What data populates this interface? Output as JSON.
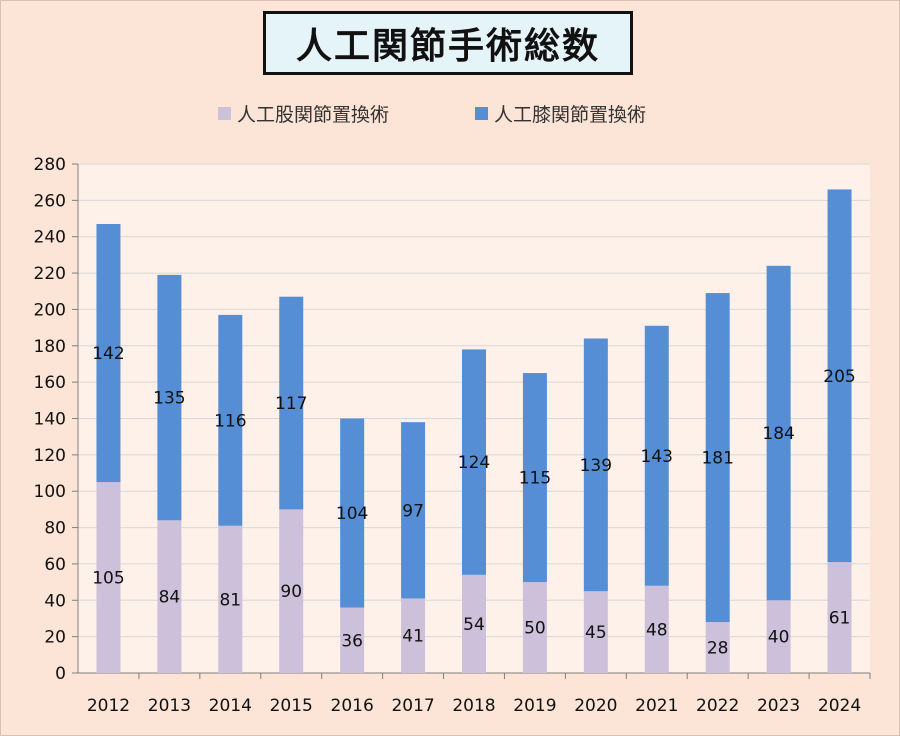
{
  "chart_data": {
    "type": "bar",
    "stacked": true,
    "title": "人工関節手術総数",
    "xlabel": "",
    "ylabel": "",
    "categories": [
      "2012",
      "2013",
      "2014",
      "2015",
      "2016",
      "2017",
      "2018",
      "2019",
      "2020",
      "2021",
      "2022",
      "2023",
      "2024"
    ],
    "series": [
      {
        "name": "人工股関節置換術",
        "color": "#ccc0da",
        "values": [
          105,
          84,
          81,
          90,
          36,
          41,
          54,
          50,
          45,
          48,
          28,
          40,
          61
        ]
      },
      {
        "name": "人工膝関節置換術",
        "color": "#558ed5",
        "values": [
          142,
          135,
          116,
          117,
          104,
          97,
          124,
          115,
          139,
          143,
          181,
          184,
          205
        ]
      }
    ],
    "ylim": [
      0,
      280
    ],
    "yticks": [
      0,
      20,
      40,
      60,
      80,
      100,
      120,
      140,
      160,
      180,
      200,
      220,
      240,
      260,
      280
    ],
    "grid": true,
    "legend_position": "top",
    "background_color": "#fce4d6",
    "title_box_color": "#e5f4f8"
  }
}
